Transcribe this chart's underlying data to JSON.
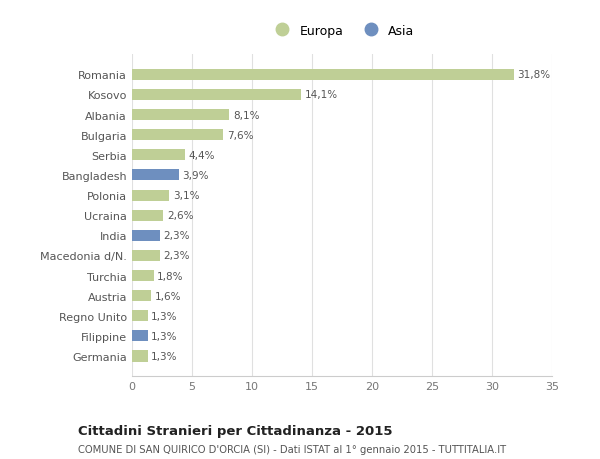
{
  "categories": [
    "Romania",
    "Kosovo",
    "Albania",
    "Bulgaria",
    "Serbia",
    "Bangladesh",
    "Polonia",
    "Ucraina",
    "India",
    "Macedonia d/N.",
    "Turchia",
    "Austria",
    "Regno Unito",
    "Filippine",
    "Germania"
  ],
  "values": [
    31.8,
    14.1,
    8.1,
    7.6,
    4.4,
    3.9,
    3.1,
    2.6,
    2.3,
    2.3,
    1.8,
    1.6,
    1.3,
    1.3,
    1.3
  ],
  "labels": [
    "31,8%",
    "14,1%",
    "8,1%",
    "7,6%",
    "4,4%",
    "3,9%",
    "3,1%",
    "2,6%",
    "2,3%",
    "2,3%",
    "1,8%",
    "1,6%",
    "1,3%",
    "1,3%",
    "1,3%"
  ],
  "continent": [
    "Europa",
    "Europa",
    "Europa",
    "Europa",
    "Europa",
    "Asia",
    "Europa",
    "Europa",
    "Asia",
    "Europa",
    "Europa",
    "Europa",
    "Europa",
    "Asia",
    "Europa"
  ],
  "color_europa": "#bfcf96",
  "color_asia": "#6e8fbf",
  "xlim": [
    0,
    35
  ],
  "xticks": [
    0,
    5,
    10,
    15,
    20,
    25,
    30,
    35
  ],
  "title": "Cittadini Stranieri per Cittadinanza - 2015",
  "subtitle": "COMUNE DI SAN QUIRICO D'ORCIA (SI) - Dati ISTAT al 1° gennaio 2015 - TUTTITALIA.IT",
  "legend_europa": "Europa",
  "legend_asia": "Asia",
  "background_color": "#ffffff",
  "plot_background": "#ffffff",
  "grid_color": "#e0e0e0"
}
